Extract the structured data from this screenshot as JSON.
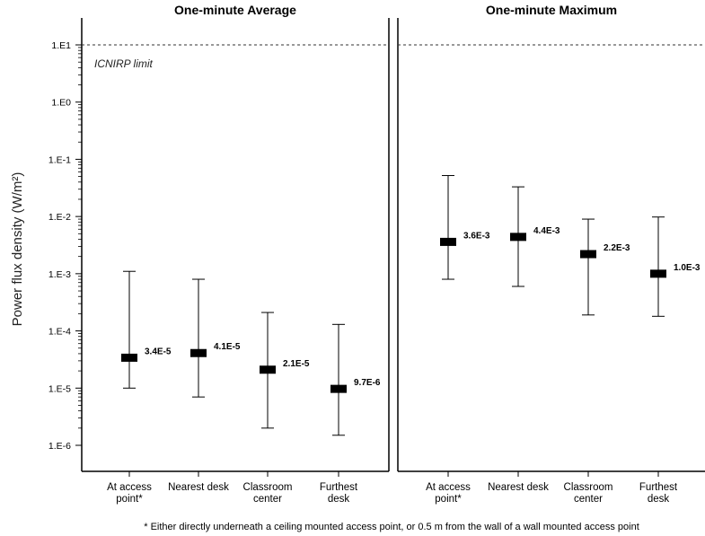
{
  "chart_data": [
    {
      "type": "error-bar",
      "title": "One-minute Average",
      "ylabel": "Power flux density (W/m²)",
      "yscale": "log",
      "ylim": [
        5e-07,
        20
      ],
      "yticks": [
        10,
        1,
        0.1,
        0.01,
        0.001,
        0.0001,
        1e-05,
        1e-06
      ],
      "ytick_labels": [
        "1.E1",
        "1.E0",
        "1.E-1",
        "1.E-2",
        "1.E-3",
        "1.E-4",
        "1.E-5",
        "1.E-6"
      ],
      "categories": [
        [
          "At access",
          "point*"
        ],
        [
          "Nearest desk"
        ],
        [
          "Classroom",
          "center"
        ],
        [
          "Furthest",
          "desk"
        ]
      ],
      "values": [
        3.4e-05,
        4.1e-05,
        2.1e-05,
        9.7e-06
      ],
      "value_labels": [
        "3.4E-5",
        "4.1E-5",
        "2.1E-5",
        "9.7E-6"
      ],
      "upper": [
        0.0011,
        0.0008,
        0.00021,
        0.00013
      ],
      "lower": [
        1e-05,
        7e-06,
        2e-06,
        1.5e-06
      ],
      "reference_line": {
        "value": 10,
        "label": "ICNIRP limit",
        "style": "dashed"
      }
    },
    {
      "type": "error-bar",
      "title": "One-minute Maximum",
      "yscale": "log",
      "ylim": [
        5e-07,
        20
      ],
      "categories": [
        [
          "At access",
          "point*"
        ],
        [
          "Nearest desk"
        ],
        [
          "Classroom",
          "center"
        ],
        [
          "Furthest",
          "desk"
        ]
      ],
      "values": [
        0.0036,
        0.0044,
        0.0022,
        0.001
      ],
      "value_labels": [
        "3.6E-3",
        "4.4E-3",
        "2.2E-3",
        "1.0E-3"
      ],
      "upper": [
        0.052,
        0.033,
        0.009,
        0.0098
      ],
      "lower": [
        0.0008,
        0.0006,
        0.00019,
        0.00018
      ],
      "reference_line": {
        "value": 10,
        "style": "dashed"
      }
    }
  ],
  "footnote": "* Either directly underneath a ceiling mounted access point, or 0.5 m from the wall of a wall mounted access point"
}
